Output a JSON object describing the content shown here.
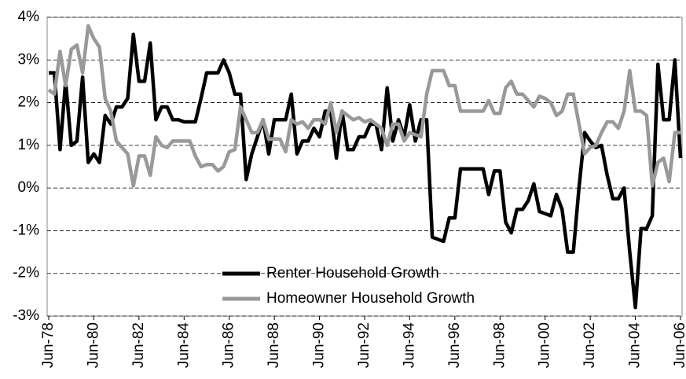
{
  "chart_data": {
    "type": "line",
    "categories": [
      "Jun-78",
      null,
      null,
      null,
      null,
      null,
      null,
      null,
      "Jun-80",
      null,
      null,
      null,
      null,
      null,
      null,
      null,
      "Jun-82",
      null,
      null,
      null,
      null,
      null,
      null,
      null,
      "Jun-84",
      null,
      null,
      null,
      null,
      null,
      null,
      null,
      "Jun-86",
      null,
      null,
      null,
      null,
      null,
      null,
      null,
      "Jun-88",
      null,
      null,
      null,
      null,
      null,
      null,
      null,
      "Jun-90",
      null,
      null,
      null,
      null,
      null,
      null,
      null,
      "Jun-92",
      null,
      null,
      null,
      null,
      null,
      null,
      null,
      "Jun-94",
      null,
      null,
      null,
      null,
      null,
      null,
      null,
      "Jun-96",
      null,
      null,
      null,
      null,
      null,
      null,
      null,
      "Jun-98",
      null,
      null,
      null,
      null,
      null,
      null,
      null,
      "Jun-00",
      null,
      null,
      null,
      null,
      null,
      null,
      null,
      "Jun-02",
      null,
      null,
      null,
      null,
      null,
      null,
      null,
      "Jun-04",
      null,
      null,
      null,
      null,
      null,
      null,
      null,
      "Jun-06"
    ],
    "series": [
      {
        "name": "Renter Household Growth",
        "color": "#000000",
        "values": [
          2.7,
          2.7,
          0.9,
          2.5,
          1.0,
          1.1,
          2.6,
          0.6,
          0.8,
          0.6,
          1.7,
          1.5,
          1.9,
          1.9,
          2.1,
          3.6,
          2.5,
          2.5,
          3.4,
          1.6,
          1.9,
          1.9,
          1.6,
          1.6,
          1.55,
          1.55,
          1.55,
          2.1,
          2.7,
          2.7,
          2.7,
          3.0,
          2.7,
          2.2,
          2.2,
          0.2,
          0.8,
          1.2,
          1.6,
          0.8,
          1.6,
          1.6,
          1.6,
          2.2,
          0.8,
          1.1,
          1.1,
          1.4,
          1.2,
          1.8,
          1.8,
          0.7,
          1.8,
          0.9,
          0.9,
          1.2,
          1.2,
          1.5,
          1.5,
          0.9,
          2.35,
          1.1,
          1.6,
          1.2,
          1.95,
          1.1,
          1.6,
          1.6,
          -1.15,
          -1.2,
          -1.25,
          -0.7,
          -0.7,
          0.45,
          0.45,
          0.45,
          0.45,
          0.45,
          -0.15,
          0.4,
          0.4,
          -0.8,
          -1.05,
          -0.5,
          -0.5,
          -0.3,
          0.1,
          -0.55,
          -0.6,
          -0.65,
          -0.15,
          -0.5,
          -1.5,
          -1.5,
          0.0,
          1.3,
          1.1,
          0.95,
          1.0,
          0.3,
          -0.25,
          -0.25,
          0.0,
          -1.5,
          -2.8,
          -0.95,
          -0.95,
          -0.65,
          2.9,
          1.6,
          1.6,
          3.0,
          0.7
        ]
      },
      {
        "name": "Homeowner Household Growth",
        "color": "#999999",
        "values": [
          2.3,
          2.2,
          3.2,
          2.4,
          3.25,
          3.35,
          2.7,
          3.8,
          3.5,
          3.3,
          2.1,
          1.8,
          1.1,
          0.95,
          0.8,
          0.05,
          0.75,
          0.75,
          0.3,
          1.2,
          1.0,
          0.95,
          1.1,
          1.1,
          1.1,
          1.1,
          0.75,
          0.5,
          0.55,
          0.55,
          0.4,
          0.5,
          0.85,
          0.9,
          1.9,
          1.6,
          1.3,
          1.3,
          1.6,
          1.15,
          1.15,
          1.15,
          0.85,
          1.6,
          1.5,
          1.55,
          1.4,
          1.6,
          1.6,
          1.5,
          2.0,
          1.3,
          1.8,
          1.7,
          1.6,
          1.65,
          1.55,
          1.6,
          1.5,
          1.4,
          1.0,
          1.5,
          1.5,
          1.1,
          1.3,
          1.25,
          1.2,
          2.2,
          2.75,
          2.75,
          2.75,
          2.4,
          2.4,
          1.8,
          1.8,
          1.8,
          1.8,
          1.8,
          2.05,
          1.75,
          1.75,
          2.35,
          2.5,
          2.2,
          2.2,
          2.05,
          1.9,
          2.15,
          2.1,
          2.0,
          1.7,
          1.8,
          2.2,
          2.2,
          1.5,
          0.8,
          0.95,
          1.0,
          1.3,
          1.55,
          1.55,
          1.4,
          1.8,
          2.75,
          1.8,
          1.8,
          1.7,
          0.05,
          0.6,
          0.7,
          0.15,
          1.3,
          1.3
        ]
      }
    ],
    "ylim": [
      -3,
      4
    ],
    "yticks": [
      {
        "value": -3,
        "label": "-3%"
      },
      {
        "value": -2,
        "label": "-2%"
      },
      {
        "value": -1,
        "label": "-1%"
      },
      {
        "value": 0,
        "label": "0%"
      },
      {
        "value": 1,
        "label": "1%"
      },
      {
        "value": 2,
        "label": "2%"
      },
      {
        "value": 3,
        "label": "3%"
      },
      {
        "value": 4,
        "label": "4%"
      }
    ],
    "grid": true,
    "legend": "center"
  }
}
